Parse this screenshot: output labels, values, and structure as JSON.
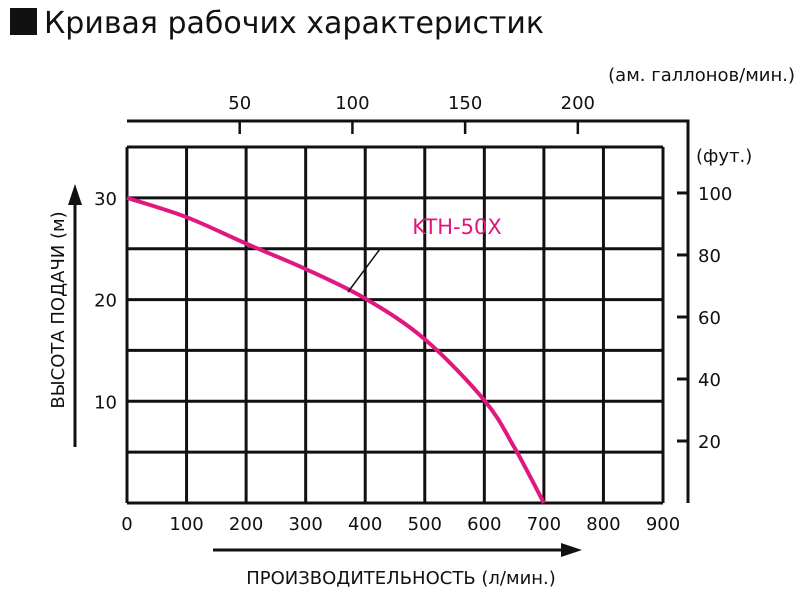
{
  "title": "Кривая рабочих характеристик",
  "chart_data": {
    "type": "line",
    "title": "Кривая рабочих характеристик",
    "xlabel": "ПРОИЗВОДИТЕЛЬНОСТЬ (л/мин.)",
    "ylabel": "ВЫСОТА ПОДАЧИ (м)",
    "xlim": [
      0,
      900
    ],
    "ylim": [
      0,
      35
    ],
    "x_ticks": [
      0,
      100,
      200,
      300,
      400,
      500,
      600,
      700,
      800,
      900
    ],
    "y_ticks": [
      10,
      20,
      30
    ],
    "grid": true,
    "grid_x_step": 100,
    "grid_y_step": 5,
    "secondary_x": {
      "label": "(ам. галлонов/мин.)",
      "ticks": [
        50,
        100,
        150,
        200
      ]
    },
    "secondary_y": {
      "label": "(фут.)",
      "ticks": [
        20,
        40,
        60,
        80,
        100
      ]
    },
    "series": [
      {
        "name": "KTH-50X",
        "color": "#e0177f",
        "x": [
          0,
          100,
          200,
          300,
          400,
          500,
          600,
          650,
          700
        ],
        "y": [
          30,
          28.1,
          25.5,
          23.0,
          20.1,
          16.1,
          10.1,
          5.5,
          0
        ]
      }
    ]
  }
}
